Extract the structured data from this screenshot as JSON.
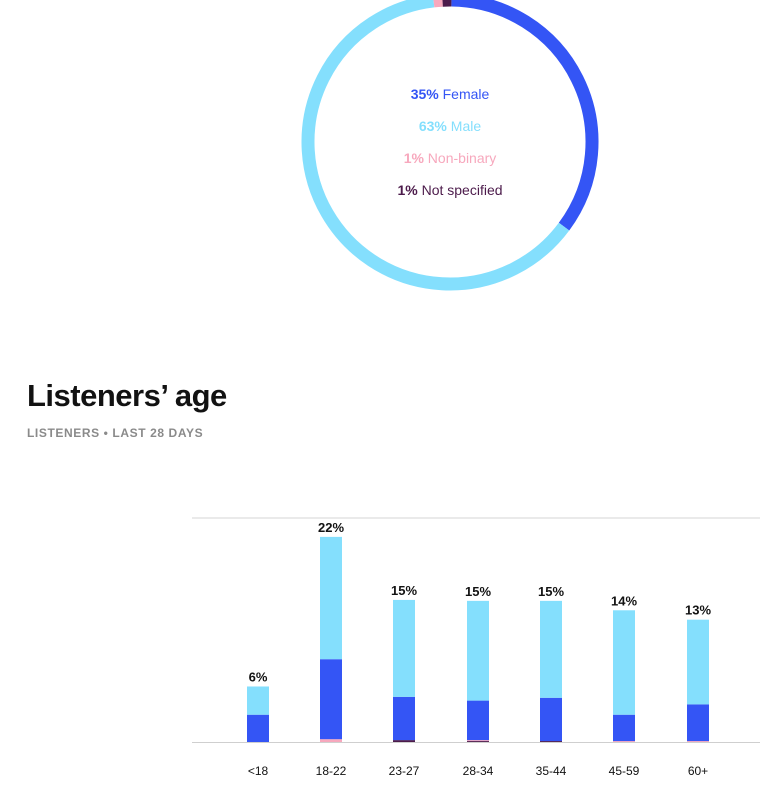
{
  "gender": {
    "colors": {
      "female": "#3455f5",
      "male": "#84dffd",
      "non_binary": "#f7a8bd",
      "not_specified": "#4c1b4b"
    },
    "chart_data": {
      "type": "pie",
      "categories": [
        "Female",
        "Male",
        "Non-binary",
        "Not specified"
      ],
      "values": [
        35,
        63,
        1,
        1
      ]
    },
    "legend": [
      {
        "pct": "35%",
        "label": "Female",
        "color": "#3455f5"
      },
      {
        "pct": "63%",
        "label": "Male",
        "color": "#84dffd"
      },
      {
        "pct": "1%",
        "label": "Non-binary",
        "color": "#f7a8bd"
      },
      {
        "pct": "1%",
        "label": "Not specified",
        "color": "#4c1b4b"
      }
    ]
  },
  "age": {
    "title": "Listeners’ age",
    "subtitle": "LISTENERS • LAST 28 DAYS",
    "chart_data": {
      "type": "bar",
      "stacked": true,
      "categories": [
        "<18",
        "18-22",
        "23-27",
        "28-34",
        "35-44",
        "45-59",
        "60+"
      ],
      "totals": [
        6,
        22,
        15,
        15,
        15,
        14,
        13
      ],
      "total_labels": [
        "6%",
        "22%",
        "15%",
        "15%",
        "15%",
        "14%",
        "13%"
      ],
      "series": [
        {
          "key": "not_specified",
          "color": "#4c1b4b",
          "values": [
            0,
            0,
            0.2,
            0.1,
            0.1,
            0,
            0
          ]
        },
        {
          "key": "non_binary",
          "color": "#f7a8bd",
          "values": [
            0,
            0.3,
            0,
            0.1,
            0,
            0.1,
            0.1
          ]
        },
        {
          "key": "female",
          "color": "#3455f5",
          "values": [
            2.9,
            8.5,
            4.6,
            4.2,
            4.6,
            2.8,
            3.9
          ]
        },
        {
          "key": "male",
          "color": "#84dffd",
          "values": [
            3.0,
            13.0,
            10.3,
            10.6,
            10.3,
            11.1,
            9.0
          ]
        }
      ],
      "ylim": [
        0,
        22
      ],
      "grid": "top and baseline rules"
    }
  }
}
